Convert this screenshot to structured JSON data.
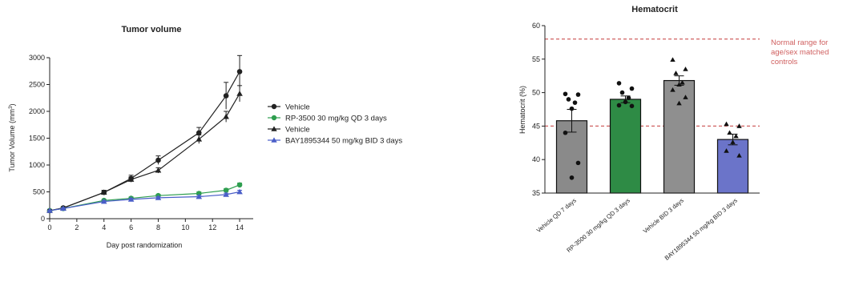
{
  "chart_data": [
    {
      "type": "line",
      "title": "Tumor volume",
      "xlabel": "Day post randomization",
      "ylabel": "Tumor Volume (mm",
      "ylabel_sup": "3",
      "ylabel_end": ")",
      "xlim": [
        0,
        15
      ],
      "ylim": [
        0,
        3000
      ],
      "xticks": [
        0,
        2,
        4,
        6,
        8,
        10,
        12,
        14
      ],
      "yticks": [
        0,
        500,
        1000,
        1500,
        2000,
        2500,
        3000
      ],
      "legend_position": "right",
      "series": [
        {
          "name": "Vehicle",
          "marker": "circle",
          "color": "#222222",
          "x": [
            0,
            1,
            4,
            6,
            8,
            11,
            13,
            14
          ],
          "y": [
            150,
            200,
            490,
            750,
            1090,
            1600,
            2290,
            2740
          ],
          "err": [
            20,
            25,
            40,
            60,
            80,
            100,
            250,
            300
          ]
        },
        {
          "name": "RP-3500 30 mg/kg QD 3 days",
          "marker": "circle",
          "color": "#2e9e4f",
          "x": [
            0,
            1,
            4,
            6,
            8,
            11,
            13,
            14
          ],
          "y": [
            150,
            190,
            340,
            380,
            430,
            470,
            530,
            630
          ],
          "err": [
            10,
            15,
            20,
            25,
            25,
            30,
            30,
            35
          ]
        },
        {
          "name": "Vehicle",
          "marker": "triangle",
          "color": "#222222",
          "x": [
            0,
            1,
            4,
            6,
            8,
            11,
            13,
            14
          ],
          "y": [
            150,
            200,
            490,
            730,
            900,
            1480,
            1900,
            2330
          ],
          "err": [
            20,
            25,
            35,
            50,
            50,
            80,
            100,
            150
          ]
        },
        {
          "name": "BAY1895344 50 mg/kg BID 3 days",
          "marker": "triangle",
          "color": "#4a5ec8",
          "x": [
            0,
            1,
            4,
            6,
            8,
            11,
            13,
            14
          ],
          "y": [
            150,
            190,
            320,
            360,
            390,
            410,
            450,
            500
          ],
          "err": [
            10,
            15,
            20,
            20,
            20,
            25,
            25,
            30
          ]
        }
      ]
    },
    {
      "type": "bar",
      "title": "Hematocrit",
      "xlabel": "",
      "ylabel": "Hematocrit (%)",
      "ylim": [
        35,
        60
      ],
      "yticks": [
        35,
        40,
        45,
        50,
        55,
        60
      ],
      "categories": [
        "Vehicle QD 7 days",
        "RP-3500 30 mg/kg QD 3 days",
        "Vehicle BID 3 days",
        "BAY1895344 50 mg/kg BID 3 days"
      ],
      "values": [
        45.8,
        49.0,
        51.8,
        43.0
      ],
      "err": [
        1.7,
        0.5,
        0.7,
        0.8
      ],
      "colors": [
        "#8a8a8a",
        "#2e8b45",
        "#8f8f8f",
        "#6b74c9"
      ],
      "markers": [
        "circle",
        "circle",
        "triangle",
        "triangle"
      ],
      "points": [
        [
          49.8,
          49.7,
          49.0,
          48.5,
          47.6,
          44.0,
          39.5,
          37.3
        ],
        [
          51.4,
          50.6,
          50.0,
          49.2,
          48.6,
          48.1,
          48.0
        ],
        [
          54.9,
          53.5,
          52.9,
          51.5,
          51.2,
          50.4,
          49.3,
          48.4
        ],
        [
          45.3,
          45.0,
          44.0,
          43.5,
          42.6,
          41.3,
          40.6
        ]
      ],
      "reference_lines": [
        58,
        45
      ],
      "annotation": [
        "Normal range for",
        "age/sex matched",
        "controls"
      ]
    }
  ]
}
